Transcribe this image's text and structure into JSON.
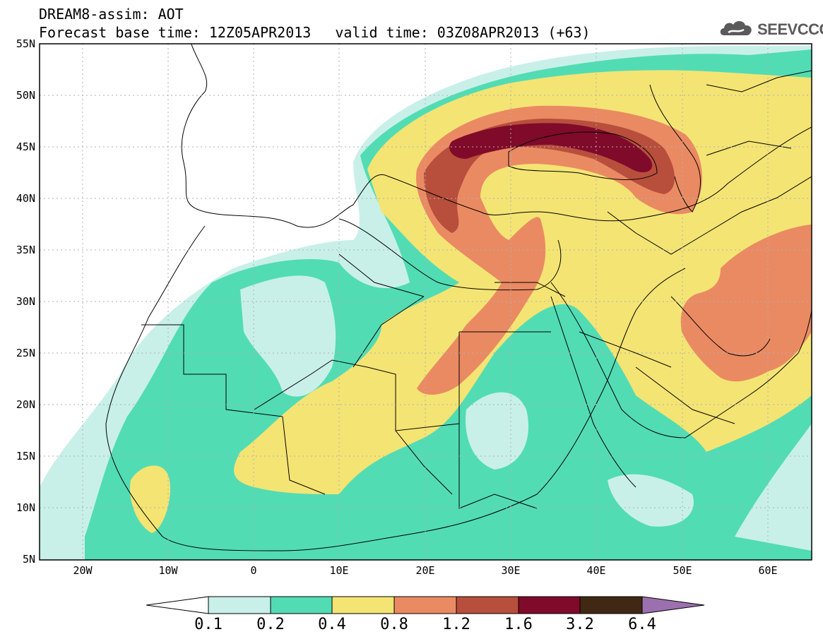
{
  "header": {
    "model_line": "DREAM8-assim: AOT",
    "base_time": "Forecast base time: 12Z05APR2013",
    "valid_time": "valid time: 03Z08APR2013 (+63)"
  },
  "logo": {
    "text": "SEEVCCC",
    "icon": "cloud-icon"
  },
  "map": {
    "lat_labels": [
      "55N",
      "50N",
      "45N",
      "40N",
      "35N",
      "30N",
      "25N",
      "20N",
      "15N",
      "10N",
      "5N"
    ],
    "lon_labels": [
      "20W",
      "10W",
      "0",
      "10E",
      "20E",
      "30E",
      "40E",
      "50E",
      "60E"
    ],
    "colors": {
      "c01": "#c8f0e9",
      "c02": "#52dcb4",
      "c04": "#f4e474",
      "c08": "#ea8a62",
      "c12": "#b84e3c",
      "c16": "#800a2a",
      "c32": "#402814",
      "c64": "#9c70ae"
    }
  },
  "colorbar": {
    "bins": [
      {
        "name": "0.1-0.2",
        "color": "#c8f0e9"
      },
      {
        "name": "0.2-0.4",
        "color": "#52dcb4"
      },
      {
        "name": "0.4-0.8",
        "color": "#f4e474"
      },
      {
        "name": "0.8-1.2",
        "color": "#ea8a62"
      },
      {
        "name": "1.2-1.6",
        "color": "#b84e3c"
      },
      {
        "name": "1.6-3.2",
        "color": "#800a2a"
      },
      {
        "name": "3.2-6.4",
        "color": "#402814"
      }
    ],
    "under_color": "#ffffff",
    "over_color": "#9c70ae",
    "labels": [
      "0.1",
      "0.2",
      "0.4",
      "0.8",
      "1.2",
      "1.6",
      "3.2",
      "6.4"
    ]
  }
}
